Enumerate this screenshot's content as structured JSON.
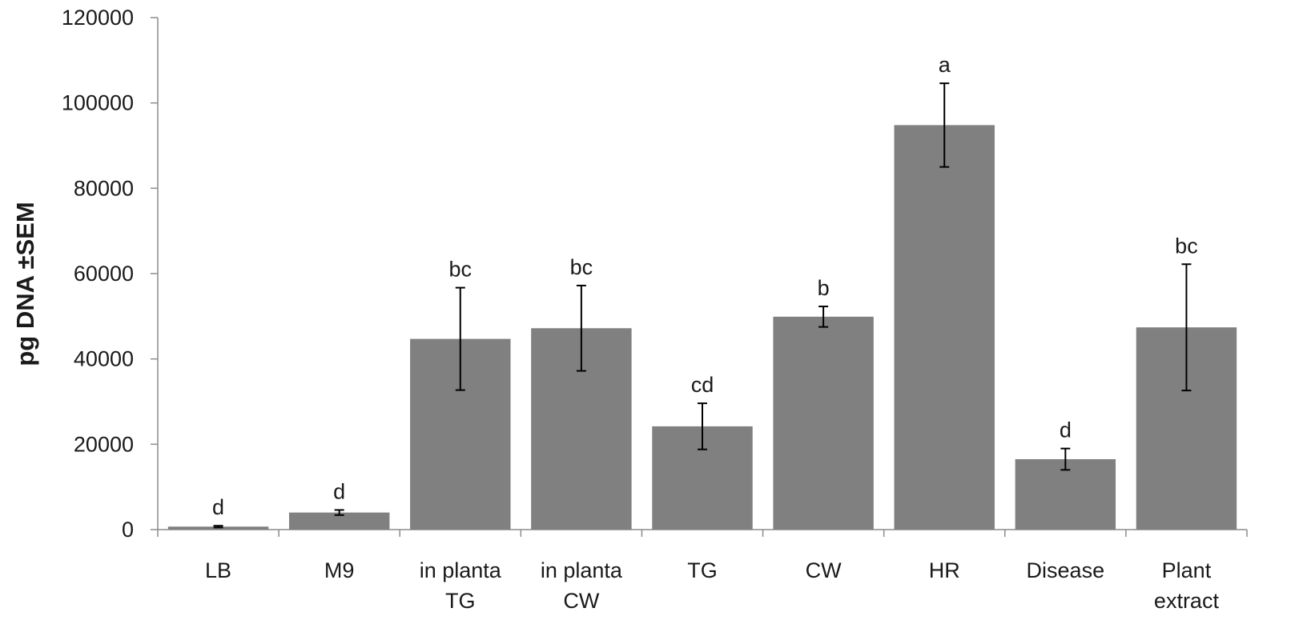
{
  "chart_data": {
    "type": "bar",
    "ylabel": "pg DNA ±SEM",
    "xlabel": "",
    "ylim": [
      0,
      120000
    ],
    "yticks": [
      "0",
      "20000",
      "40000",
      "60000",
      "80000",
      "100000",
      "120000"
    ],
    "grid": false,
    "legend": "none",
    "bar_color": "#808080",
    "categories": [
      [
        "LB"
      ],
      [
        "M9"
      ],
      [
        "in planta",
        "TG"
      ],
      [
        "in planta",
        "CW"
      ],
      [
        "TG"
      ],
      [
        "CW"
      ],
      [
        "HR"
      ],
      [
        "Disease"
      ],
      [
        "Plant",
        "extract"
      ]
    ],
    "values": [
      700,
      4000,
      44700,
      47200,
      24200,
      49900,
      94800,
      16500,
      47400
    ],
    "errors": [
      200,
      600,
      12000,
      10000,
      5400,
      2400,
      9800,
      2500,
      14800
    ],
    "significance": [
      "d",
      "d",
      "bc",
      "bc",
      "cd",
      "b",
      "a",
      "d",
      "bc"
    ]
  }
}
